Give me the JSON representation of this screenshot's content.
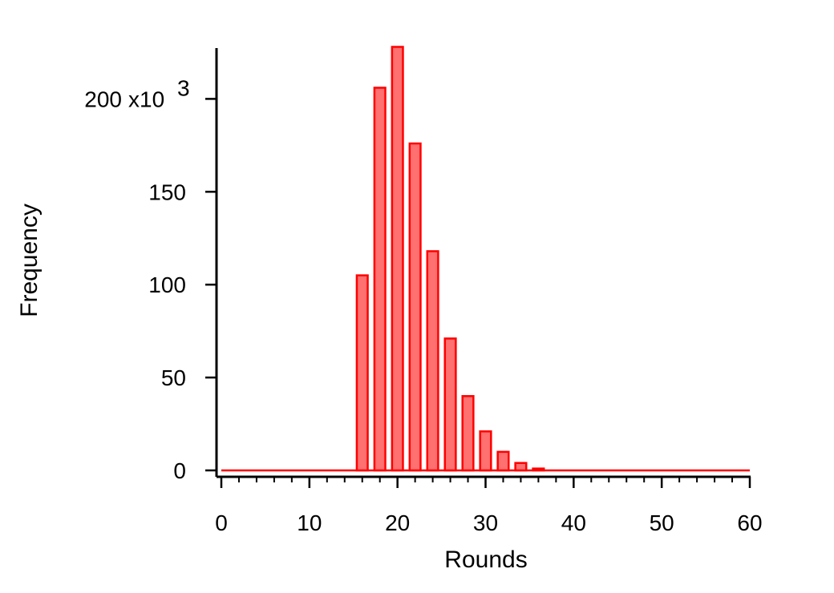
{
  "chart_data": {
    "type": "bar",
    "xlabel": "Rounds",
    "ylabel": "Frequency",
    "y_multiplier_label": "x10",
    "y_multiplier_exponent": "3",
    "xlim": [
      0,
      60
    ],
    "ylim": [
      0,
      225
    ],
    "bin_width": 2,
    "xticks": [
      0,
      10,
      20,
      30,
      40,
      50,
      60
    ],
    "xtick_labels": [
      "0",
      "10",
      "20",
      "30",
      "40",
      "50",
      "60"
    ],
    "yticks": [
      0,
      50,
      100,
      150,
      200
    ],
    "ytick_labels": [
      "0",
      "50",
      "100",
      "150",
      "200"
    ],
    "grid": false,
    "legend": "none",
    "colors": {
      "bar_fill": "#ff7070",
      "bar_stroke": "#ff0000",
      "baseline": "#ff0000",
      "axis": "#000000"
    },
    "bin_centers": [
      0,
      2,
      4,
      6,
      8,
      10,
      12,
      14,
      16,
      18,
      20,
      22,
      24,
      26,
      28,
      30,
      32,
      34,
      36,
      38,
      40,
      42,
      44,
      46,
      48,
      50,
      52,
      54,
      56,
      58,
      60
    ],
    "values": [
      0,
      0,
      0,
      0,
      0,
      0,
      0,
      0,
      105,
      206,
      228,
      176,
      118,
      71,
      40,
      21,
      10,
      4,
      1,
      0,
      0,
      0,
      0,
      0,
      0,
      0,
      0,
      0,
      0,
      0,
      0
    ]
  }
}
